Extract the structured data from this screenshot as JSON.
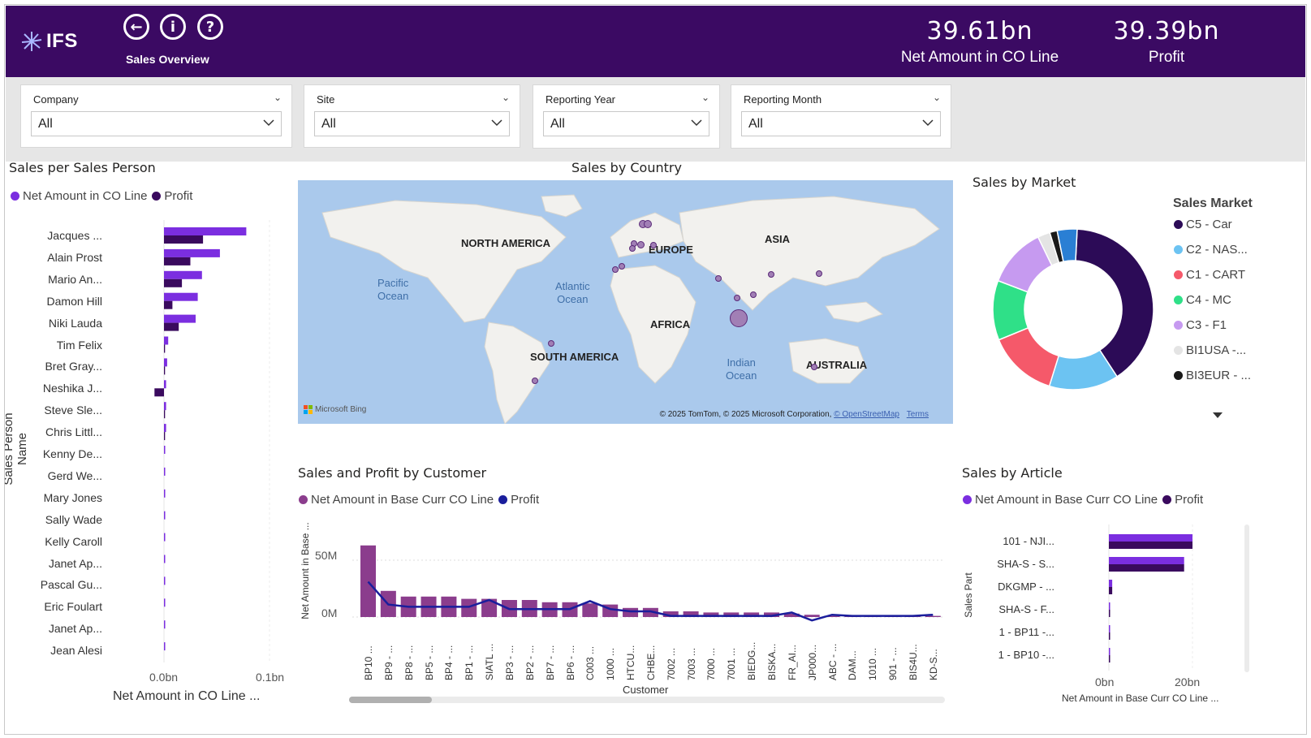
{
  "header": {
    "logo_text": "IFS",
    "page_title": "Sales Overview",
    "kpis": [
      {
        "value": "39.61bn",
        "label": "Net Amount in CO Line"
      },
      {
        "value": "39.39bn",
        "label": "Profit"
      }
    ]
  },
  "filters": [
    {
      "title": "Company",
      "value": "All"
    },
    {
      "title": "Site",
      "value": "All"
    },
    {
      "title": "Reporting Year",
      "value": "All"
    },
    {
      "title": "Reporting Month",
      "value": "All"
    }
  ],
  "sales_person": {
    "title": "Sales per Sales Person",
    "legend": [
      "Net Amount in  CO Line",
      "Profit"
    ],
    "y_title": "Sales Person Name",
    "x_title": "Net Amount in CO Line ...",
    "x_ticks": [
      "0.0bn",
      "0.1bn"
    ],
    "colors": {
      "net": "#7b2ee0",
      "profit": "#3a0a5e"
    }
  },
  "country": {
    "title": "Sales by Country",
    "continents": [
      "NORTH AMERICA",
      "EUROPE",
      "ASIA",
      "AFRICA",
      "SOUTH AMERICA",
      "AUSTRALIA"
    ],
    "oceans": [
      {
        "l1": "Pacific",
        "l2": "Ocean"
      },
      {
        "l1": "Atlantic",
        "l2": "Ocean"
      },
      {
        "l1": "Indian",
        "l2": "Ocean"
      }
    ],
    "bing": "Microsoft Bing",
    "copyright": "© 2025 TomTom, © 2025 Microsoft Corporation,",
    "osm": "© OpenStreetMap",
    "terms": "Terms"
  },
  "market": {
    "title": "Sales by Market",
    "legend_title": "Sales Market",
    "items": [
      {
        "label": "C5 - Car",
        "color": "#2c0b57"
      },
      {
        "label": "C2 - NAS...",
        "color": "#6cc3f2"
      },
      {
        "label": "C1 - CART",
        "color": "#f5596a"
      },
      {
        "label": "C4 - MC",
        "color": "#2fe088"
      },
      {
        "label": "C3 - F1",
        "color": "#c69af0"
      },
      {
        "label": "BI1USA -...",
        "color": "#e4e4e4"
      },
      {
        "label": "BI3EUR - ...",
        "color": "#1a1a1a"
      }
    ]
  },
  "customer": {
    "title": "Sales and Profit by Customer",
    "legend": [
      "Net Amount in Base Curr CO Line",
      "Profit"
    ],
    "y_title": "Net Amount in Base ...",
    "x_title": "Customer",
    "y_ticks": [
      "50M",
      "0M"
    ],
    "colors": {
      "bar": "#8b3d8d",
      "line": "#1a1e9c"
    }
  },
  "article": {
    "title": "Sales by Article",
    "legend": [
      "Net Amount in Base Curr CO Line",
      "Profit"
    ],
    "y_title": "Sales Part",
    "x_title": "Net Amount in Base Curr CO Line ...",
    "x_ticks": [
      "0bn",
      "20bn"
    ]
  },
  "chart_data": [
    {
      "type": "bar",
      "title": "Sales per Sales Person",
      "categories": [
        "Jacques ...",
        "Alain Prost",
        "Mario An...",
        "Damon Hill",
        "Niki Lauda",
        "Tim Felix",
        "Bret Gray...",
        "Neshika J...",
        "Steve Sle...",
        "Chris Littl...",
        "Kenny De...",
        "Gerd We...",
        "Mary Jones",
        "Sally Wade",
        "Kelly Caroll",
        "Janet Ap...",
        "Pascal Gu...",
        "Eric Foulart",
        "Janet Ap...",
        "Jean Alesi"
      ],
      "series": [
        {
          "name": "Net Amount in  CO Line",
          "values": [
            0.078,
            0.053,
            0.036,
            0.032,
            0.03,
            0.004,
            0.003,
            0.002,
            0.002,
            0.002,
            0.001,
            0.001,
            0.001,
            0.001,
            0.001,
            0.001,
            0.001,
            0.001,
            0.001,
            0.001
          ]
        },
        {
          "name": "Profit",
          "values": [
            0.037,
            0.025,
            0.017,
            0.008,
            0.014,
            0.001,
            0.001,
            -0.009,
            0.001,
            0.001,
            0.0,
            0.0,
            0.0,
            0.0,
            0.0,
            0.0,
            0.0,
            0.0,
            0.0,
            0.0
          ]
        }
      ],
      "xlabel": "Net Amount in CO Line ...",
      "ylabel": "Sales Person Name",
      "xlim": [
        -0.01,
        0.1
      ]
    },
    {
      "type": "pie",
      "title": "Sales by Market",
      "categories": [
        "C5 - Car",
        "C2 - NAS...",
        "C1 - CART",
        "C4 - MC",
        "C3 - F1",
        "BI1USA -...",
        "BI3EUR - ...",
        "Other"
      ],
      "values": [
        40,
        14,
        14,
        12,
        12,
        2.5,
        1.5,
        4
      ]
    },
    {
      "type": "bar",
      "title": "Sales and Profit by Customer",
      "categories": [
        "BP10 ...",
        "BP9 - ...",
        "BP8 - ...",
        "BP5 - ...",
        "BP4 - ...",
        "BP1 - ...",
        "SIATL ...",
        "BP3 - ...",
        "BP2 - ...",
        "BP7 - ...",
        "BP6 - ...",
        "C003 ...",
        "1000 ...",
        "HTCU...",
        "CHBE...",
        "7002 ...",
        "7003 ...",
        "7000 ...",
        "7001 ...",
        "BIEDG...",
        "BISKA...",
        "FR_AI...",
        "JP000...",
        "ABC - ...",
        "DAM...",
        "1010 ...",
        "901 - ...",
        "BIS4U...",
        "KD-S..."
      ],
      "series": [
        {
          "name": "Net Amount in Base Curr CO Line",
          "values": [
            63,
            23,
            18,
            18,
            18,
            16,
            16,
            15,
            15,
            13,
            13,
            12,
            11,
            8,
            8,
            5,
            5,
            4,
            4,
            4,
            4,
            3,
            2,
            1,
            1,
            1,
            1,
            1,
            1
          ]
        },
        {
          "name": "Profit",
          "values": [
            31,
            11,
            9,
            9,
            9,
            9,
            15,
            7,
            7,
            7,
            7,
            14,
            7,
            5,
            5,
            1,
            1,
            1,
            1,
            1,
            1,
            4,
            -3,
            2,
            1,
            1,
            1,
            1,
            2
          ]
        }
      ],
      "xlabel": "Customer",
      "ylabel": "Net Amount in Base ...",
      "ylim": [
        -5,
        70
      ]
    },
    {
      "type": "bar",
      "title": "Sales by Article",
      "categories": [
        "101 - NJI...",
        "SHA-S - S...",
        "DKGMP - ...",
        "SHA-S - F...",
        "1 - BP11 -...",
        "1 - BP10 -..."
      ],
      "series": [
        {
          "name": "Net Amount in Base Curr CO Line",
          "values": [
            20.0,
            18.0,
            0.8,
            0.2,
            0.2,
            0.2
          ]
        },
        {
          "name": "Profit",
          "values": [
            20.0,
            18.0,
            0.8,
            0.2,
            0.2,
            0.2
          ]
        }
      ],
      "xlabel": "Net Amount in Base Curr CO Line ...",
      "ylabel": "Sales Part",
      "xlim": [
        0,
        28
      ]
    }
  ]
}
